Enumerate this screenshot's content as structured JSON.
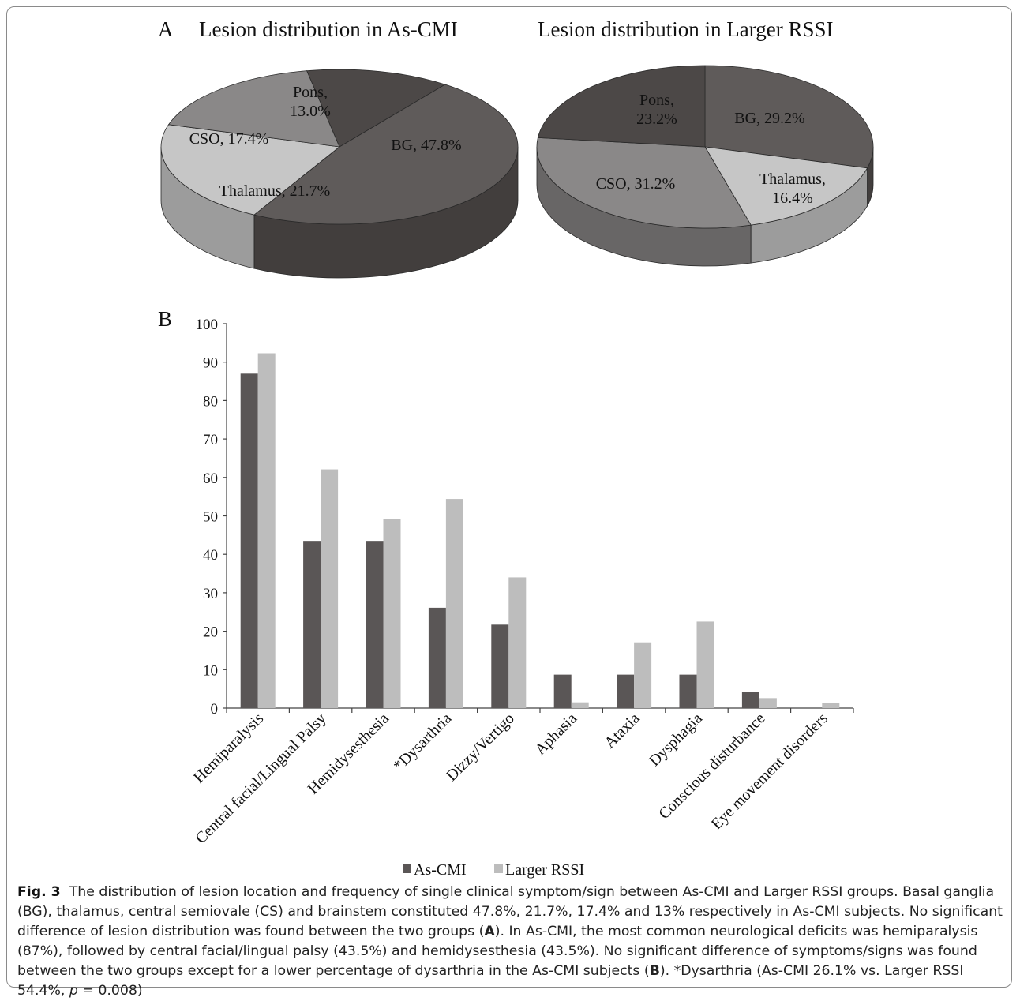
{
  "panel_a": {
    "letter": "A",
    "charts": [
      {
        "type": "pie",
        "title": "Lesion distribution in As-CMI",
        "slices": [
          {
            "name": "Pons",
            "value": 13.0,
            "label_lines": [
              "Pons,",
              "13.0%"
            ],
            "color": "#4c4847",
            "side": "#332f2e"
          },
          {
            "name": "BG",
            "value": 47.8,
            "label_lines": [
              "BG, 47.8%"
            ],
            "color": "#5f5b5a",
            "side": "#423e3d"
          },
          {
            "name": "Thalamus",
            "value": 21.7,
            "label_lines": [
              "Thalamus, 21.7%"
            ],
            "color": "#c6c6c6",
            "side": "#9c9c9c"
          },
          {
            "name": "CSO",
            "value": 17.4,
            "label_lines": [
              "CSO, 17.4%"
            ],
            "color": "#8a8888",
            "side": "#686666"
          }
        ]
      },
      {
        "type": "pie",
        "title": "Lesion distribution in Larger RSSI",
        "slices": [
          {
            "name": "BG",
            "value": 29.2,
            "label_lines": [
              "BG, 29.2%"
            ],
            "color": "#5f5b5a",
            "side": "#423e3d"
          },
          {
            "name": "Thalamus",
            "value": 16.4,
            "label_lines": [
              "Thalamus,",
              "16.4%"
            ],
            "color": "#c6c6c6",
            "side": "#9c9c9c"
          },
          {
            "name": "CSO",
            "value": 31.2,
            "label_lines": [
              "CSO, 31.2%"
            ],
            "color": "#8a8888",
            "side": "#686666"
          },
          {
            "name": "Pons",
            "value": 23.2,
            "label_lines": [
              "Pons,",
              "23.2%"
            ],
            "color": "#4c4847",
            "side": "#332f2e"
          }
        ]
      }
    ]
  },
  "panel_b": {
    "letter": "B",
    "legend": [
      "As-CMI",
      "Larger RSSI"
    ]
  },
  "chart_data": [
    {
      "type": "pie",
      "title": "Lesion distribution in As-CMI",
      "categories": [
        "BG",
        "Thalamus",
        "CSO",
        "Pons"
      ],
      "values": [
        47.8,
        21.7,
        17.4,
        13.0
      ],
      "unit": "%"
    },
    {
      "type": "pie",
      "title": "Lesion distribution in Larger RSSI",
      "categories": [
        "BG",
        "Thalamus",
        "CSO",
        "Pons"
      ],
      "values": [
        29.2,
        16.4,
        31.2,
        23.2
      ],
      "unit": "%"
    },
    {
      "type": "bar",
      "title": "",
      "xlabel": "",
      "ylabel": "",
      "ylim": [
        0,
        100
      ],
      "yticks": [
        0,
        10,
        20,
        30,
        40,
        50,
        60,
        70,
        80,
        90,
        100
      ],
      "categories": [
        "Hemiparalysis",
        "Central facial/Lingual Palsy",
        "Hemidysesthesia",
        "*Dysarthria",
        "Dizzy/Vertigo",
        "Aphasia",
        "Ataxia",
        "Dysphagia",
        "Conscious disturbance",
        "Eye movement disorders"
      ],
      "series": [
        {
          "name": "As-CMI",
          "color": "#5a5656",
          "values": [
            87.0,
            43.5,
            43.5,
            26.1,
            21.7,
            8.7,
            8.7,
            8.7,
            4.3,
            0
          ]
        },
        {
          "name": "Larger RSSI",
          "color": "#bdbdbd",
          "values": [
            92.3,
            62.1,
            49.2,
            54.4,
            34.0,
            1.5,
            17.1,
            22.5,
            2.6,
            1.3
          ]
        }
      ],
      "legend_position": "bottom",
      "grid": false
    }
  ],
  "caption": {
    "label": "Fig. 3",
    "p1": "The distribution of lesion location and frequency of single clinical symptom/sign between As-CMI and Larger RSSI groups. Basal ganglia (BG), thalamus, central semiovale (CS) and brainstem constituted 47.8%, 21.7%, 17.4% and 13% respectively in As-CMI subjects. No significant difference of lesion distribution was found between the two groups (",
    "refA": "A",
    "p2": "). In As-CMI, the most common neurological deficits was hemiparalysis (87%), followed by central facial/lingual palsy (43.5%) and hemidysesthesia (43.5%). No significant difference of symptoms/signs was found between the two groups except for a lower percentage of dysarthria in the As-CMI subjects (",
    "refB": "B",
    "p3": "). *Dysarthria (As-CMI 26.1% vs. Larger RSSI 54.4%, ",
    "pvar": "p",
    "p4": " = 0.008)"
  }
}
